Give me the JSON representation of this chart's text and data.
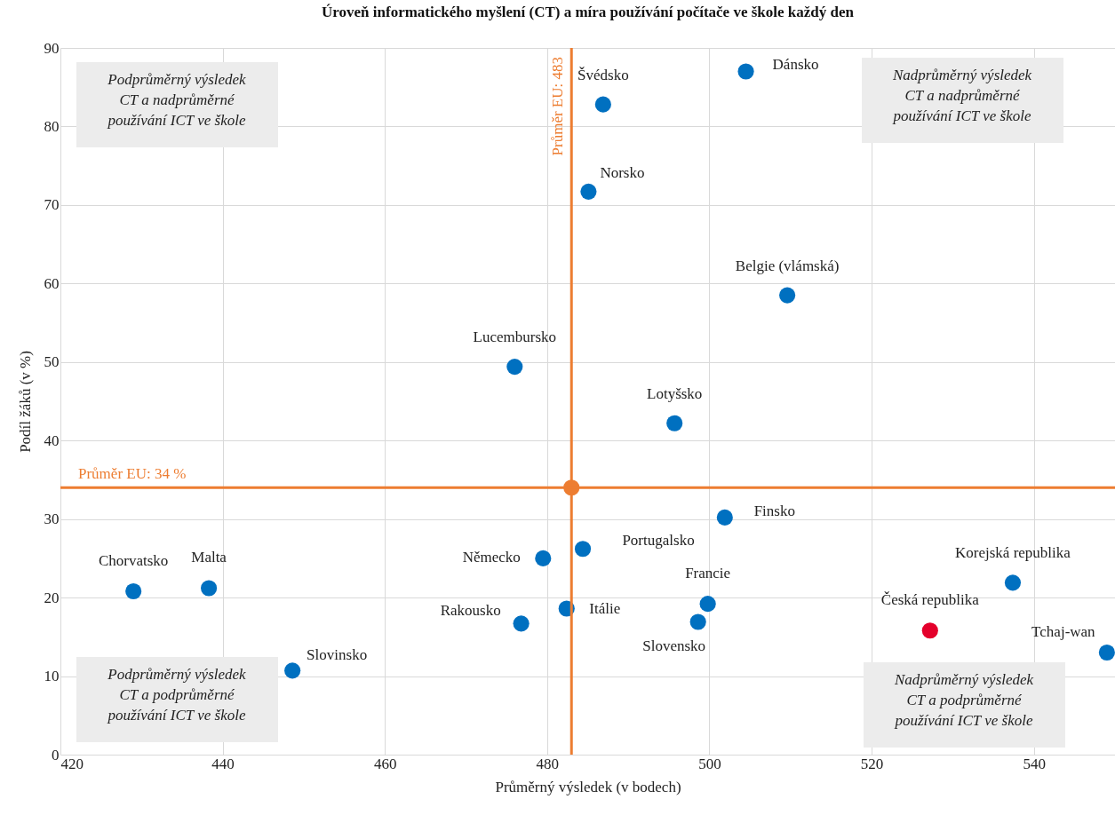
{
  "chart_data": {
    "type": "scatter",
    "title": "Úroveň informatického myšlení (CT) a míra používání počítače ve škole každý den",
    "xlabel": "Průměrný výsledek (v bodech)",
    "ylabel": "Podíl žáků (v %)",
    "xlim": [
      420,
      550
    ],
    "xticks": [
      420,
      440,
      460,
      480,
      500,
      520,
      540
    ],
    "ylim": [
      0,
      90
    ],
    "yticks": [
      0,
      10,
      20,
      30,
      40,
      50,
      60,
      70,
      80,
      90
    ],
    "grid": true,
    "marker": "circle",
    "series": [
      {
        "x": [
          486.9,
          504.5,
          485.1,
          509.6,
          476.0,
          495.7,
          501.9,
          484.4,
          479.5,
          429.0,
          438.3,
          476.8,
          482.4,
          499.8,
          498.6,
          537.4,
          527.2,
          549.0,
          448.6
        ],
        "values": [
          82.8,
          87.0,
          71.7,
          58.5,
          49.4,
          42.2,
          30.2,
          26.2,
          25.0,
          20.8,
          21.2,
          16.7,
          18.6,
          19.2,
          16.9,
          21.9,
          15.8,
          13.0,
          10.7
        ],
        "colors": [
          "#0070c0",
          "#0070c0",
          "#0070c0",
          "#0070c0",
          "#0070c0",
          "#0070c0",
          "#0070c0",
          "#0070c0",
          "#0070c0",
          "#0070c0",
          "#0070c0",
          "#0070c0",
          "#0070c0",
          "#0070c0",
          "#0070c0",
          "#0070c0",
          "#e4002b",
          "#0070c0",
          "#0070c0"
        ]
      },
      {
        "x": [
          483
        ],
        "values": [
          34
        ],
        "color": "#ed7d31"
      }
    ],
    "ref_lines": [
      {
        "axis": "x",
        "value": 483,
        "label": "Průměr EU: 483",
        "color": "#ed7d31"
      },
      {
        "axis": "y",
        "value": 34,
        "label": "Průměr EU: 34 %",
        "color": "#ed7d31"
      }
    ],
    "annotations": [
      {
        "text": "Švédsko",
        "x": 486.9,
        "y": 82.8
      },
      {
        "text": "Dánsko",
        "x": 504.5,
        "y": 87.0
      },
      {
        "text": "Norsko",
        "x": 485.1,
        "y": 71.7
      },
      {
        "text": "Belgie (vlámská)",
        "x": 509.6,
        "y": 58.5
      },
      {
        "text": "Lucembursko",
        "x": 476.0,
        "y": 49.4
      },
      {
        "text": "Lotyšsko",
        "x": 495.7,
        "y": 42.2
      },
      {
        "text": "Finsko",
        "x": 501.9,
        "y": 30.2
      },
      {
        "text": "Portugalsko",
        "x": 484.4,
        "y": 26.2
      },
      {
        "text": "Německo",
        "x": 479.5,
        "y": 25.0
      },
      {
        "text": "Chorvatsko",
        "x": 429.0,
        "y": 20.8
      },
      {
        "text": "Malta",
        "x": 438.3,
        "y": 21.2
      },
      {
        "text": "Rakousko",
        "x": 476.8,
        "y": 16.7
      },
      {
        "text": "Itálie",
        "x": 482.4,
        "y": 18.6
      },
      {
        "text": "Francie",
        "x": 499.8,
        "y": 19.2
      },
      {
        "text": "Slovensko",
        "x": 498.6,
        "y": 16.9
      },
      {
        "text": "Korejská republika",
        "x": 537.4,
        "y": 21.9
      },
      {
        "text": "Česká republika",
        "x": 527.2,
        "y": 15.8
      },
      {
        "text": "Tchaj-wan",
        "x": 549.0,
        "y": 13.0
      },
      {
        "text": "Slovinsko",
        "x": 448.6,
        "y": 10.7
      },
      "Podprůměrný výsledek\nCT a nadprůměrné\npoužívání  ICT ve škole",
      "Nadprůměrný výsledek\nCT a nadprůměrné\npoužívání  ICT ve škole",
      "Podprůměrný výsledek\nCT a podprůměrné\npoužívání  ICT ve škole",
      "Nadprůměrný výsledek\nCT a podprůměrné\npoužívání  ICT ve škole"
    ]
  }
}
